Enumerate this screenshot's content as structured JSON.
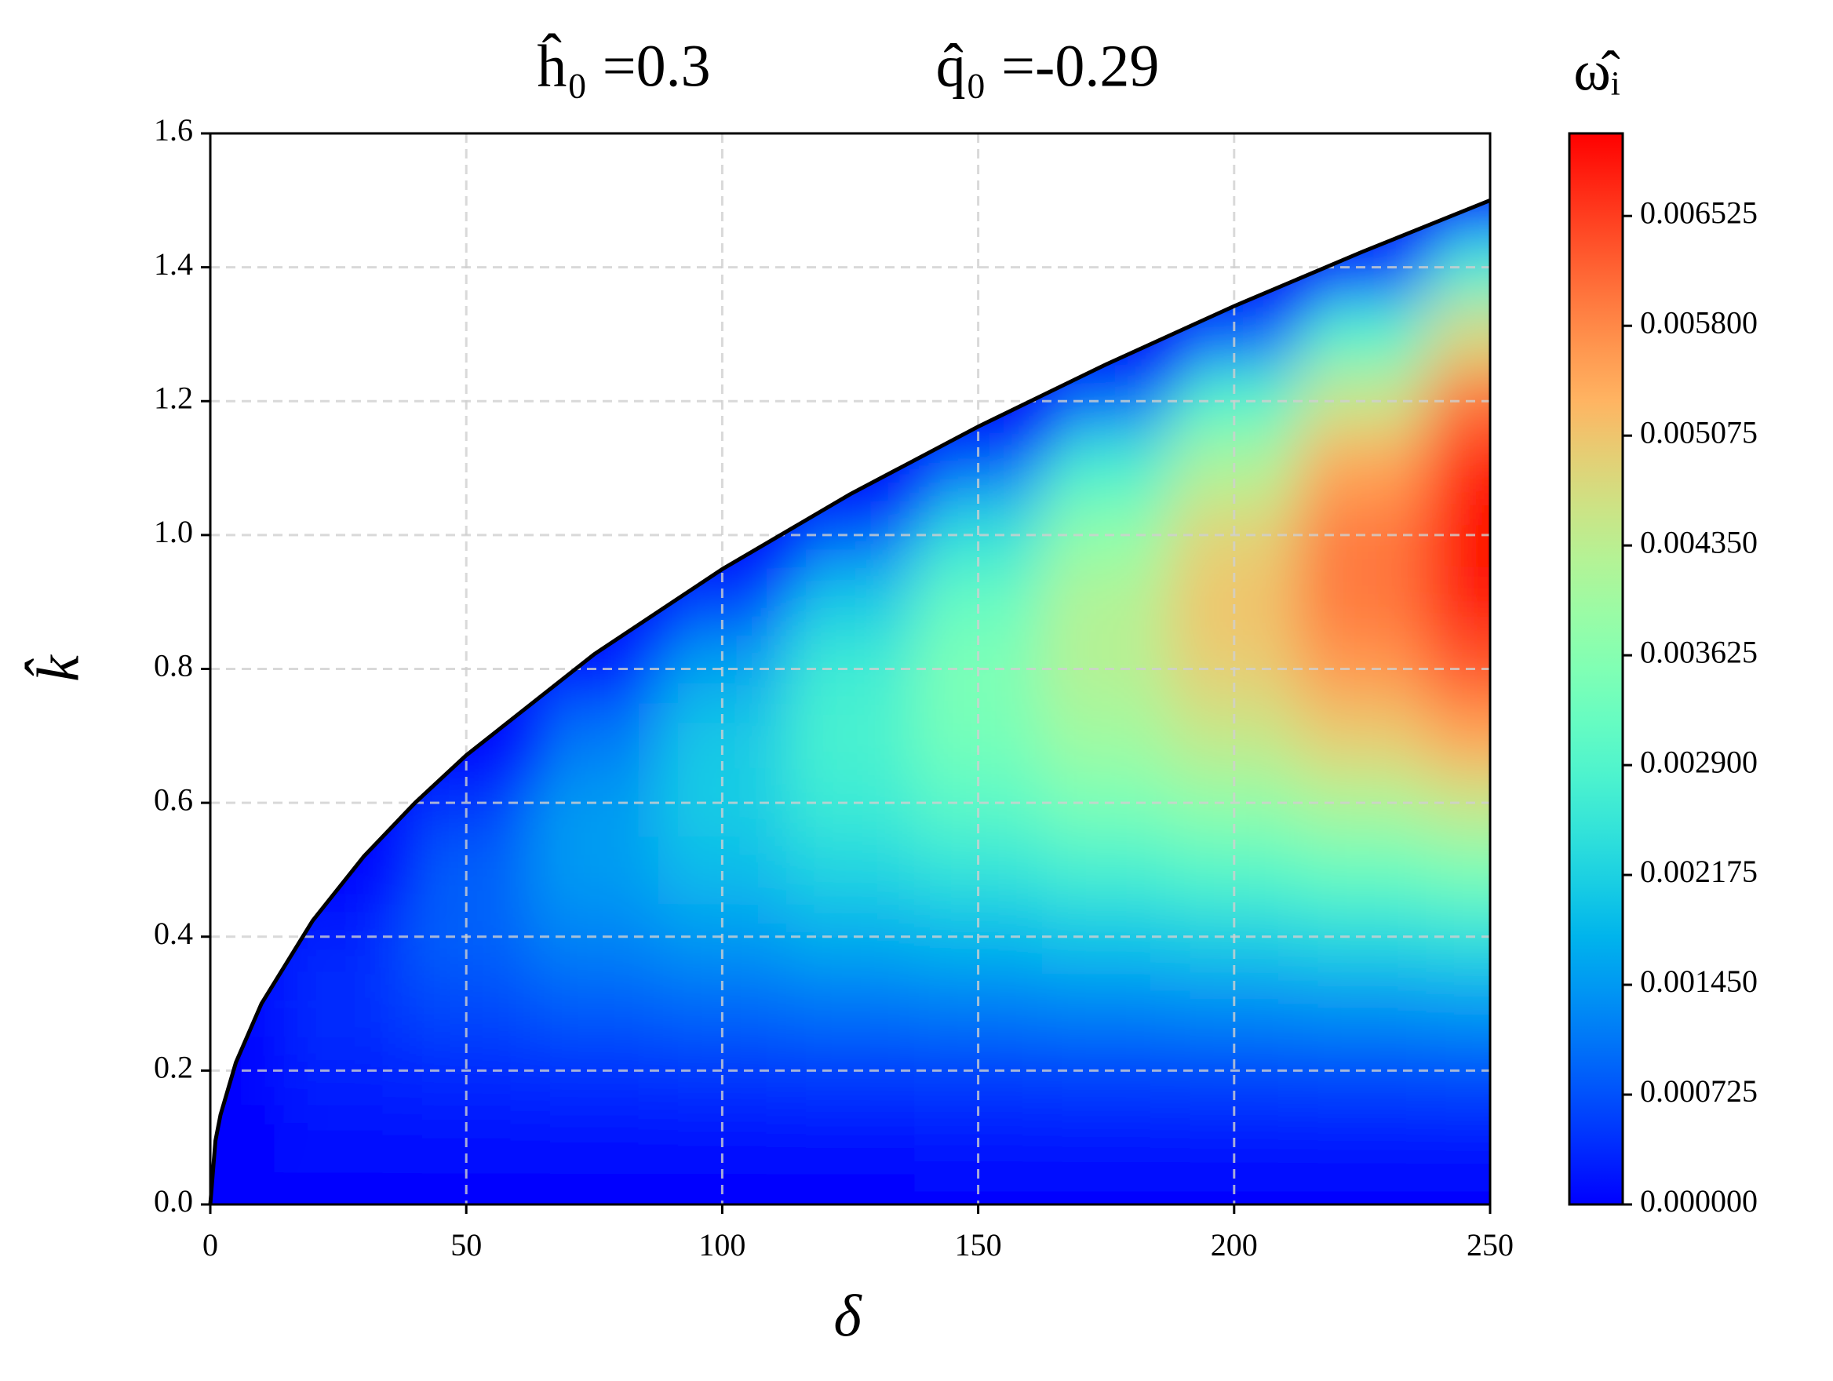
{
  "chart_data": {
    "type": "contour",
    "titles": [
      "ĥ₀ =0.3",
      "q̂₀ =-0.29"
    ],
    "xlabel": "δ",
    "ylabel": "k̂",
    "colorbar_label": "ω̂ᵢ",
    "colormap": "rainbow",
    "xlim": [
      0,
      250
    ],
    "xticks": [
      0,
      50,
      100,
      150,
      200,
      250
    ],
    "ylim": [
      0,
      1.6
    ],
    "yticks": [
      {
        "value": 0,
        "label": "0.0"
      },
      0.2,
      0.4,
      0.6,
      0.8,
      {
        "value": 1,
        "label": "1.0"
      },
      1.2,
      1.4,
      1.6
    ],
    "clim": [
      0,
      0.00707
    ],
    "cticks": [
      {
        "value": 0,
        "label": "0.000000"
      },
      0.000725,
      {
        "value": 0.00145,
        "label": "0.001450"
      },
      0.002175,
      {
        "value": 0.0029,
        "label": "0.002900"
      },
      0.003625,
      {
        "value": 0.00435,
        "label": "0.004350"
      },
      0.005075,
      {
        "value": 0.0058,
        "label": "0.005800"
      },
      0.006525
    ],
    "grid": true,
    "x": [
      0,
      25,
      50,
      75,
      100,
      125,
      150,
      175,
      200,
      225,
      250
    ],
    "y": [
      0,
      0.1,
      0.2,
      0.3,
      0.4,
      0.5,
      0.6,
      0.7,
      0.8,
      0.9,
      1.0,
      1.1,
      1.2,
      1.3,
      1.4,
      1.5
    ],
    "z": [
      [
        0,
        0,
        0,
        0,
        0,
        0,
        0,
        0,
        0,
        0,
        0
      ],
      [
        null,
        0.0001,
        0.00012,
        0.00013,
        0.00014,
        0.00015,
        0.00016,
        0.00017,
        0.00018,
        0.00019,
        0.0002
      ],
      [
        null,
        0.0003,
        0.00038,
        0.00045,
        0.0005,
        0.00055,
        0.00058,
        0.00062,
        0.00065,
        0.00069,
        0.00073
      ],
      [
        null,
        0.0004,
        0.00067,
        0.00086,
        0.00097,
        0.00108,
        0.00117,
        0.00126,
        0.00134,
        0.00142,
        0.00151
      ],
      [
        null,
        0.0003,
        0.00087,
        0.00123,
        0.00146,
        0.00168,
        0.00184,
        0.00201,
        0.00215,
        0.0023,
        0.00246
      ],
      [
        null,
        null,
        0.00086,
        0.00147,
        0.00186,
        0.00222,
        0.00249,
        0.00277,
        0.003,
        0.00325,
        0.0035
      ],
      [
        null,
        null,
        0.00051,
        0.00146,
        0.00209,
        0.00263,
        0.00305,
        0.00347,
        0.00381,
        0.00418,
        0.00454
      ],
      [
        null,
        null,
        null,
        0.00109,
        0.00202,
        0.0028,
        0.00341,
        0.004,
        0.00449,
        0.00499,
        0.0055
      ],
      [
        null,
        null,
        null,
        0.00026,
        0.00158,
        0.00265,
        0.0035,
        0.00428,
        0.00495,
        0.00561,
        0.00628
      ],
      [
        null,
        null,
        null,
        null,
        0.00066,
        0.00207,
        0.00319,
        0.00423,
        0.0051,
        0.00596,
        0.00681
      ],
      [
        null,
        null,
        null,
        null,
        null,
        0.00096,
        0.00244,
        0.00375,
        0.00488,
        0.00595,
        0.007
      ],
      [
        null,
        null,
        null,
        null,
        null,
        null,
        0.00112,
        0.00277,
        0.00417,
        0.0055,
        0.00679
      ],
      [
        null,
        null,
        null,
        null,
        null,
        null,
        null,
        0.00117,
        0.00292,
        0.00452,
        0.00605
      ],
      [
        null,
        null,
        null,
        null,
        null,
        null,
        null,
        null,
        0.001,
        0.00291,
        0.00472
      ],
      [
        null,
        null,
        null,
        null,
        null,
        null,
        null,
        null,
        null,
        0.00063,
        0.00276
      ],
      [
        null,
        null,
        null,
        null,
        null,
        null,
        null,
        null,
        null,
        null,
        0
      ]
    ],
    "boundary": {
      "color": "#000000",
      "x": [
        0,
        1,
        2,
        5,
        10,
        20,
        30,
        40,
        50,
        75,
        100,
        125,
        150,
        175,
        200,
        225,
        250
      ],
      "y": [
        0,
        0.095,
        0.134,
        0.212,
        0.3,
        0.424,
        0.52,
        0.6,
        0.671,
        0.822,
        0.949,
        1.061,
        1.162,
        1.255,
        1.342,
        1.423,
        1.5
      ]
    }
  }
}
